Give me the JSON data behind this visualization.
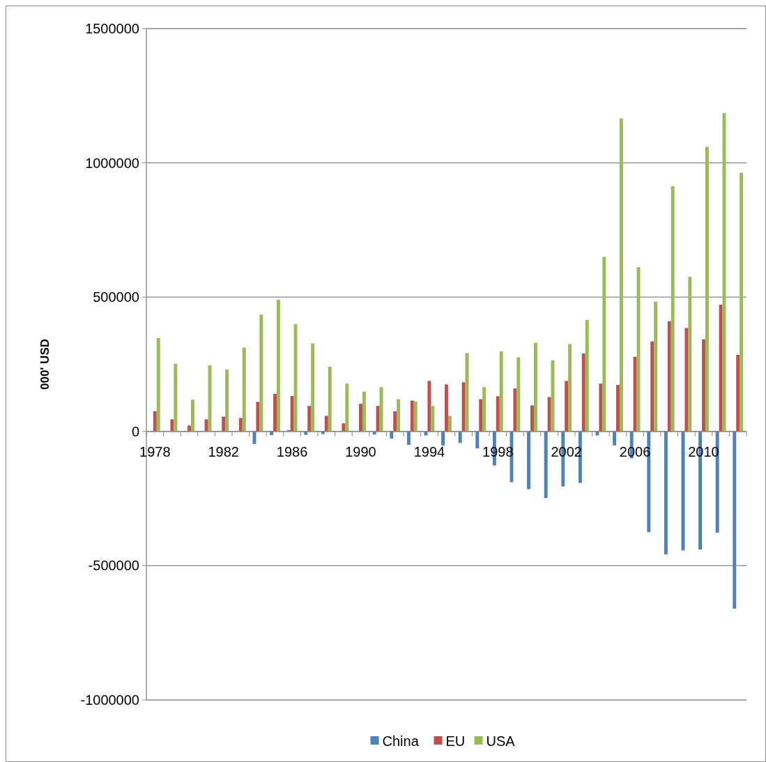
{
  "chart_data": {
    "type": "bar",
    "ylabel": "000' USD",
    "categories": [
      "1978",
      null,
      null,
      null,
      "1982",
      null,
      null,
      null,
      "1986",
      null,
      null,
      null,
      "1990",
      null,
      null,
      null,
      "1994",
      null,
      null,
      null,
      "1998",
      null,
      null,
      null,
      "2002",
      null,
      null,
      null,
      "2006",
      null,
      null,
      null,
      "2010",
      null,
      null
    ],
    "series": [
      {
        "name": "China",
        "color": "#4f81bd",
        "values": [
          0,
          0,
          0,
          0,
          0,
          0,
          -47000,
          -14000,
          5000,
          -13000,
          -10000,
          0,
          0,
          -12000,
          -27000,
          -50000,
          -15000,
          -52000,
          -43000,
          -63000,
          -127000,
          -189000,
          -215000,
          -248000,
          -205000,
          -192000,
          -15000,
          -52000,
          -100000,
          -375000,
          -458000,
          -443000,
          -440000,
          -377000,
          -660000
        ]
      },
      {
        "name": "EU",
        "color": "#c0504d",
        "values": [
          75000,
          45000,
          22000,
          45000,
          55000,
          50000,
          110000,
          140000,
          132000,
          95000,
          58000,
          30000,
          103000,
          95000,
          75000,
          115000,
          188000,
          175000,
          183000,
          120000,
          131000,
          160000,
          97000,
          128000,
          188000,
          290000,
          178000,
          173000,
          278000,
          335000,
          410000,
          385000,
          343000,
          472000,
          285000
        ]
      },
      {
        "name": "USA",
        "color": "#9bbb59",
        "values": [
          348000,
          252000,
          118000,
          246000,
          230000,
          312000,
          435000,
          490000,
          400000,
          328000,
          241000,
          178000,
          148000,
          165000,
          120000,
          112000,
          95000,
          58000,
          292000,
          165000,
          298000,
          276000,
          330000,
          265000,
          325000,
          415000,
          650000,
          1165000,
          612000,
          483000,
          913000,
          576000,
          1060000,
          1185000,
          963000
        ]
      }
    ],
    "ylim": [
      -1000000,
      1500000
    ],
    "yticks": [
      -1000000,
      -500000,
      0,
      500000,
      1000000,
      1500000
    ],
    "grid": "y",
    "legend": "bottom"
  }
}
